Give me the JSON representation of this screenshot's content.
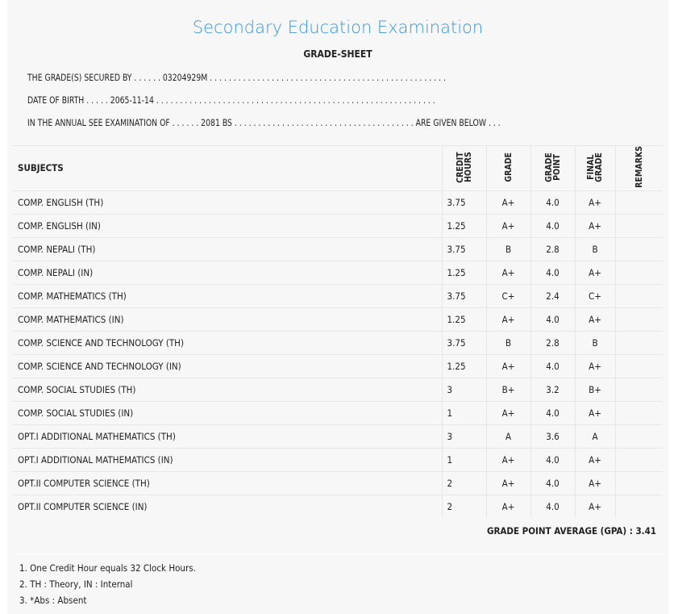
{
  "title": "Secondary Education Examination",
  "subtitle": "GRADE-SHEET",
  "lines": [
    "THE GRADE(S) SECURED BY . . . . . . 03204929M . . . . . . . . . . . . . . . . . . . . . . . . . . . . . . . . . . . . . . . . . . . . . . . . . .",
    "DATE OF BIRTH . . . . . 2065-11-14 . . . . . . . . . . . . . . . . . . . . . . . . . . . . . . . . . . . . . . . . . . . . . . . . . . . . . . . . . . .",
    "IN THE ANNUAL SEE EXAMINATION OF . . . . . . 2081 BS . . . . . . . . . . . . . . . . . . . . . . . . . . . . . . . . . . . . . . ARE GIVEN BELOW . . ."
  ],
  "headers": {
    "subjects": "SUBJECTS",
    "credit": "CREDIT HOURS",
    "grade": "GRADE",
    "point": "GRADE POINT",
    "final": "FINAL GRADE",
    "remarks": "REMARKS"
  },
  "rows": [
    [
      "COMP. ENGLISH (TH)",
      "3.75",
      "A+",
      "4.0",
      "A+"
    ],
    [
      "COMP. ENGLISH (IN)",
      "1.25",
      "A+",
      "4.0",
      "A+"
    ],
    [
      "COMP. NEPALI (TH)",
      "3.75",
      "B",
      "2.8",
      "B"
    ],
    [
      "COMP. NEPALI (IN)",
      "1.25",
      "A+",
      "4.0",
      "A+"
    ],
    [
      "COMP. MATHEMATICS (TH)",
      "3.75",
      "C+",
      "2.4",
      "C+"
    ],
    [
      "COMP. MATHEMATICS (IN)",
      "1.25",
      "A+",
      "4.0",
      "A+"
    ],
    [
      "COMP. SCIENCE AND TECHNOLOGY (TH)",
      "3.75",
      "B",
      "2.8",
      "B"
    ],
    [
      "COMP. SCIENCE AND TECHNOLOGY (IN)",
      "1.25",
      "A+",
      "4.0",
      "A+"
    ],
    [
      "COMP. SOCIAL STUDIES (TH)",
      "3",
      "B+",
      "3.2",
      "B+"
    ],
    [
      "COMP. SOCIAL STUDIES (IN)",
      "1",
      "A+",
      "4.0",
      "A+"
    ],
    [
      "OPT.I ADDITIONAL MATHEMATICS (TH)",
      "3",
      "A",
      "3.6",
      "A"
    ],
    [
      "OPT.I ADDITIONAL MATHEMATICS (IN)",
      "1",
      "A+",
      "4.0",
      "A+"
    ],
    [
      "OPT.II COMPUTER SCIENCE (TH)",
      "2",
      "A+",
      "4.0",
      "A+"
    ],
    [
      "OPT.II COMPUTER SCIENCE (IN)",
      "2",
      "A+",
      "4.0",
      "A+"
    ]
  ],
  "gpa": "GRADE POINT AVERAGE (GPA) : 3.41",
  "notes": [
    "1. One Credit Hour equals 32 Clock Hours.",
    "2. TH : Theory, IN : Internal",
    "3. *Abs : Absent"
  ]
}
